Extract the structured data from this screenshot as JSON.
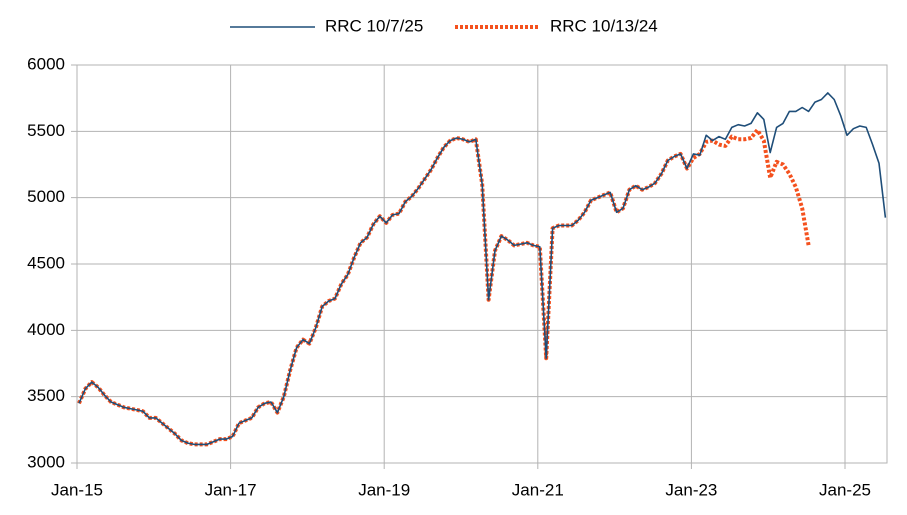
{
  "chart_data": {
    "type": "line",
    "categories": [
      "Jan-15",
      null,
      null,
      null,
      null,
      null,
      null,
      null,
      null,
      null,
      null,
      null,
      null,
      null,
      null,
      null,
      null,
      null,
      null,
      null,
      null,
      null,
      null,
      null,
      "Jan-17",
      null,
      null,
      null,
      null,
      null,
      null,
      null,
      null,
      null,
      null,
      null,
      null,
      null,
      null,
      null,
      null,
      null,
      null,
      null,
      null,
      null,
      null,
      null,
      "Jan-19",
      null,
      null,
      null,
      null,
      null,
      null,
      null,
      null,
      null,
      null,
      null,
      null,
      null,
      null,
      null,
      null,
      null,
      null,
      null,
      null,
      null,
      null,
      null,
      "Jan-21",
      null,
      null,
      null,
      null,
      null,
      null,
      null,
      null,
      null,
      null,
      null,
      null,
      null,
      null,
      null,
      null,
      null,
      null,
      null,
      null,
      null,
      null,
      null,
      "Jan-23",
      null,
      null,
      null,
      null,
      null,
      null,
      null,
      null,
      null,
      null,
      null,
      null,
      null,
      null,
      null,
      null,
      null,
      null,
      null,
      null,
      null,
      null,
      null,
      "Jan-25",
      null,
      null,
      null,
      null,
      null,
      null
    ],
    "series": [
      {
        "name": "RRC 10/7/25",
        "color": "#1f4e79",
        "style": "solid",
        "values": [
          3450,
          3560,
          3610,
          3570,
          3510,
          3460,
          3440,
          3420,
          3410,
          3400,
          3390,
          3340,
          3340,
          3300,
          3260,
          3220,
          3170,
          3150,
          3140,
          3140,
          3140,
          3160,
          3180,
          3180,
          3200,
          3300,
          3320,
          3340,
          3420,
          3450,
          3460,
          3380,
          3500,
          3700,
          3870,
          3930,
          3900,
          4020,
          4180,
          4220,
          4240,
          4350,
          4420,
          4550,
          4660,
          4700,
          4800,
          4860,
          4810,
          4870,
          4880,
          4970,
          5010,
          5070,
          5140,
          5210,
          5300,
          5380,
          5430,
          5450,
          5440,
          5420,
          5440,
          5100,
          4230,
          4600,
          4710,
          4680,
          4640,
          4650,
          4660,
          4640,
          4630,
          3790,
          4770,
          4790,
          4790,
          4790,
          4830,
          4890,
          4980,
          5000,
          5020,
          5040,
          4890,
          4920,
          5060,
          5090,
          5060,
          5080,
          5110,
          5180,
          5280,
          5310,
          5330,
          5220,
          5330,
          5320,
          5470,
          5430,
          5460,
          5440,
          5530,
          5550,
          5540,
          5560,
          5640,
          5590,
          5340,
          5530,
          5560,
          5650,
          5650,
          5680,
          5650,
          5720,
          5740,
          5790,
          5740,
          5620,
          5470,
          5520,
          5540,
          5530,
          5400,
          5260,
          4850
        ]
      },
      {
        "name": "RRC 10/13/24",
        "color": "#f4511e",
        "style": "dotted",
        "values": [
          3450,
          3560,
          3610,
          3570,
          3510,
          3460,
          3440,
          3420,
          3410,
          3400,
          3390,
          3340,
          3340,
          3300,
          3260,
          3220,
          3170,
          3150,
          3140,
          3140,
          3140,
          3160,
          3180,
          3180,
          3200,
          3300,
          3320,
          3340,
          3420,
          3450,
          3460,
          3380,
          3500,
          3700,
          3870,
          3930,
          3900,
          4020,
          4180,
          4220,
          4240,
          4350,
          4420,
          4550,
          4660,
          4700,
          4800,
          4860,
          4810,
          4870,
          4880,
          4970,
          5010,
          5070,
          5140,
          5210,
          5300,
          5380,
          5430,
          5450,
          5440,
          5420,
          5440,
          5100,
          4230,
          4600,
          4710,
          4680,
          4640,
          4650,
          4660,
          4640,
          4630,
          3790,
          4770,
          4790,
          4790,
          4790,
          4830,
          4890,
          4980,
          5000,
          5020,
          5040,
          4890,
          4920,
          5060,
          5090,
          5060,
          5080,
          5110,
          5180,
          5280,
          5310,
          5330,
          5220,
          5300,
          5330,
          5420,
          5430,
          5400,
          5390,
          5460,
          5440,
          5440,
          5450,
          5510,
          5430,
          5150,
          5270,
          5250,
          5180,
          5080,
          4920,
          4640,
          null,
          null,
          null,
          null,
          null,
          null,
          null,
          null,
          null,
          null,
          null,
          null
        ]
      }
    ],
    "ylim": [
      3000,
      6000
    ],
    "yticks": [
      3000,
      3500,
      4000,
      4500,
      5000,
      5500,
      6000
    ],
    "grid": true,
    "legend": "top"
  }
}
